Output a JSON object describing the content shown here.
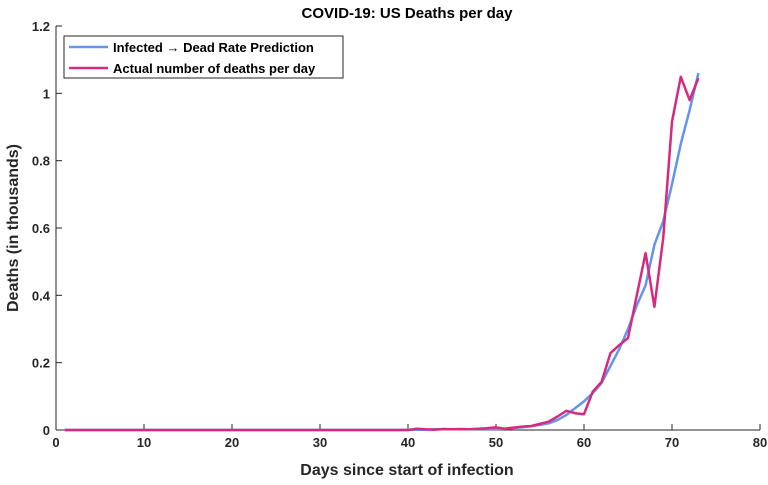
{
  "chart_data": {
    "type": "line",
    "title": "COVID-19: US Deaths per day",
    "xlabel": "Days since start of infection",
    "ylabel": "Deaths (in thousands)",
    "xlim": [
      0,
      80
    ],
    "ylim": [
      0,
      1.2
    ],
    "xticks": [
      "0",
      "10",
      "20",
      "30",
      "40",
      "50",
      "60",
      "70",
      "80"
    ],
    "yticks": [
      "0",
      "0.2",
      "0.4",
      "0.6",
      "0.8",
      "1",
      "1.2"
    ],
    "grid": false,
    "legend_position": "top-left",
    "series": [
      {
        "name": "Infected → Dead Rate Prediction",
        "color": "#6495ED",
        "start_day": 1,
        "values": [
          0,
          0,
          0,
          0,
          0,
          0,
          0,
          0,
          0,
          0,
          0,
          0,
          0,
          0,
          0,
          0,
          0,
          0,
          0,
          0,
          0,
          0,
          0,
          0,
          0,
          0,
          0,
          0,
          0,
          0,
          0,
          0,
          0,
          0,
          0,
          0,
          0,
          0,
          0,
          0.001,
          0.001,
          0.001,
          0.002,
          0.002,
          0.002,
          0.002,
          0.002,
          0.003,
          0.003,
          0.003,
          0.004,
          0.006,
          0.008,
          0.011,
          0.015,
          0.02,
          0.03,
          0.045,
          0.065,
          0.085,
          0.11,
          0.14,
          0.19,
          0.24,
          0.3,
          0.37,
          0.43,
          0.55,
          0.62,
          0.73,
          0.85,
          0.95,
          1.06
        ]
      },
      {
        "name": "Actual number of deaths per day",
        "color": "#D62A7F",
        "start_day": 1,
        "values": [
          0,
          0,
          0,
          0,
          0,
          0,
          0,
          0,
          0,
          0,
          0,
          0,
          0,
          0,
          0,
          0,
          0,
          0,
          0,
          0,
          0,
          0,
          0,
          0,
          0,
          0,
          0,
          0,
          0,
          0,
          0,
          0,
          0,
          0,
          0,
          0,
          0,
          0,
          0,
          0,
          0.004,
          0.002,
          0.001,
          0.003,
          0.002,
          0.003,
          0.002,
          0.004,
          0.005,
          0.008,
          0.004,
          0.007,
          0.01,
          0.012,
          0.018,
          0.025,
          0.04,
          0.057,
          0.05,
          0.047,
          0.114,
          0.143,
          0.228,
          0.252,
          0.273,
          0.4,
          0.525,
          0.366,
          0.57,
          0.916,
          1.049,
          0.98,
          1.045
        ]
      }
    ]
  }
}
